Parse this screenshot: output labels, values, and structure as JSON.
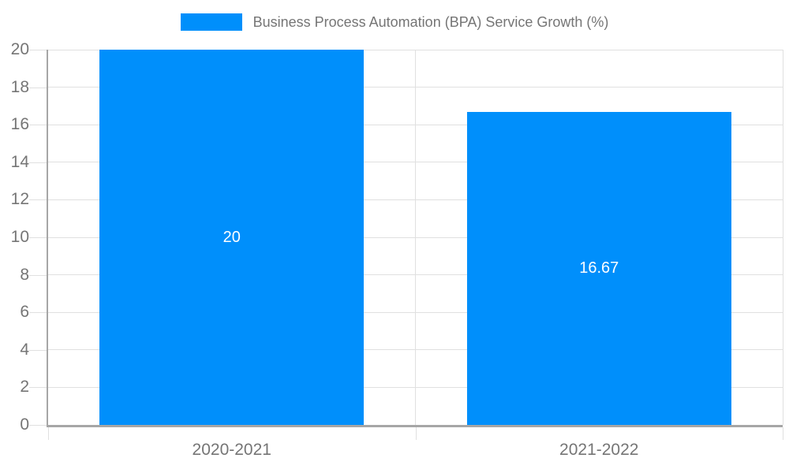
{
  "legend": {
    "label": "Business Process Automation (BPA) Service Growth (%)"
  },
  "chart_data": {
    "type": "bar",
    "title": "Business Process Automation (BPA) Service Growth (%)",
    "categories": [
      "2020-2021",
      "2021-2022"
    ],
    "values": [
      20,
      16.67
    ],
    "data_labels": [
      "20",
      "16.67"
    ],
    "xlabel": "",
    "ylabel": "",
    "ylim": [
      0,
      20
    ],
    "yticks": [
      0,
      2,
      4,
      6,
      8,
      10,
      12,
      14,
      16,
      18,
      20
    ],
    "grid": true,
    "legend_position": "top",
    "bar_width_fraction": 0.72,
    "colors": {
      "bar": "#008FFB",
      "grid": "#e0e0e0",
      "axis": "#a6a6a6",
      "label_text": "#757575",
      "data_label_text": "#ffffff",
      "background": "#ffffff"
    }
  }
}
